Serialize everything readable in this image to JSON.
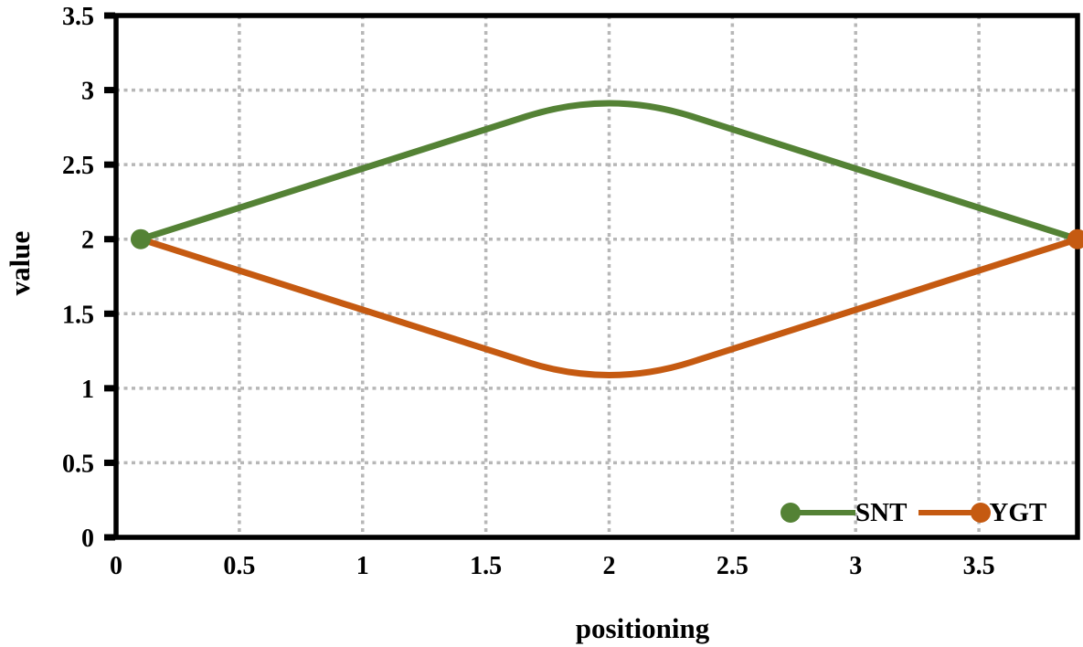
{
  "chart_data": {
    "type": "line",
    "title": "",
    "xlabel": "positioning",
    "ylabel": "value",
    "xlim": [
      0,
      3.9
    ],
    "ylim": [
      0,
      3.5
    ],
    "x_ticks": [
      "0",
      "0.5",
      "1",
      "1.5",
      "2",
      "2.5",
      "3",
      "3.5"
    ],
    "y_ticks": [
      "0",
      "0.5",
      "1",
      "1.5",
      "2",
      "2.5",
      "3",
      "3.5"
    ],
    "grid": true,
    "grid_style": "dotted",
    "grid_color": "#b7b7b7",
    "axis_color": "#000000",
    "background_color": "#ffffff",
    "legend_position": "inside-bottom-right",
    "line_style": "smoothed-rounded-peak",
    "series": [
      {
        "name": "SNT",
        "color": "#548235",
        "marker": "circle",
        "marker_at": "first-point",
        "points": [
          [
            0.1,
            2.0
          ],
          [
            2.0,
            3.0
          ],
          [
            3.9,
            2.0
          ]
        ],
        "apparent_peak_value": 2.92
      },
      {
        "name": "YGT",
        "color": "#C55A11",
        "marker": "circle",
        "marker_at": "last-point",
        "points": [
          [
            0.1,
            2.0
          ],
          [
            2.0,
            1.0
          ],
          [
            3.9,
            2.0
          ]
        ],
        "apparent_trough_value": 1.08
      }
    ]
  }
}
